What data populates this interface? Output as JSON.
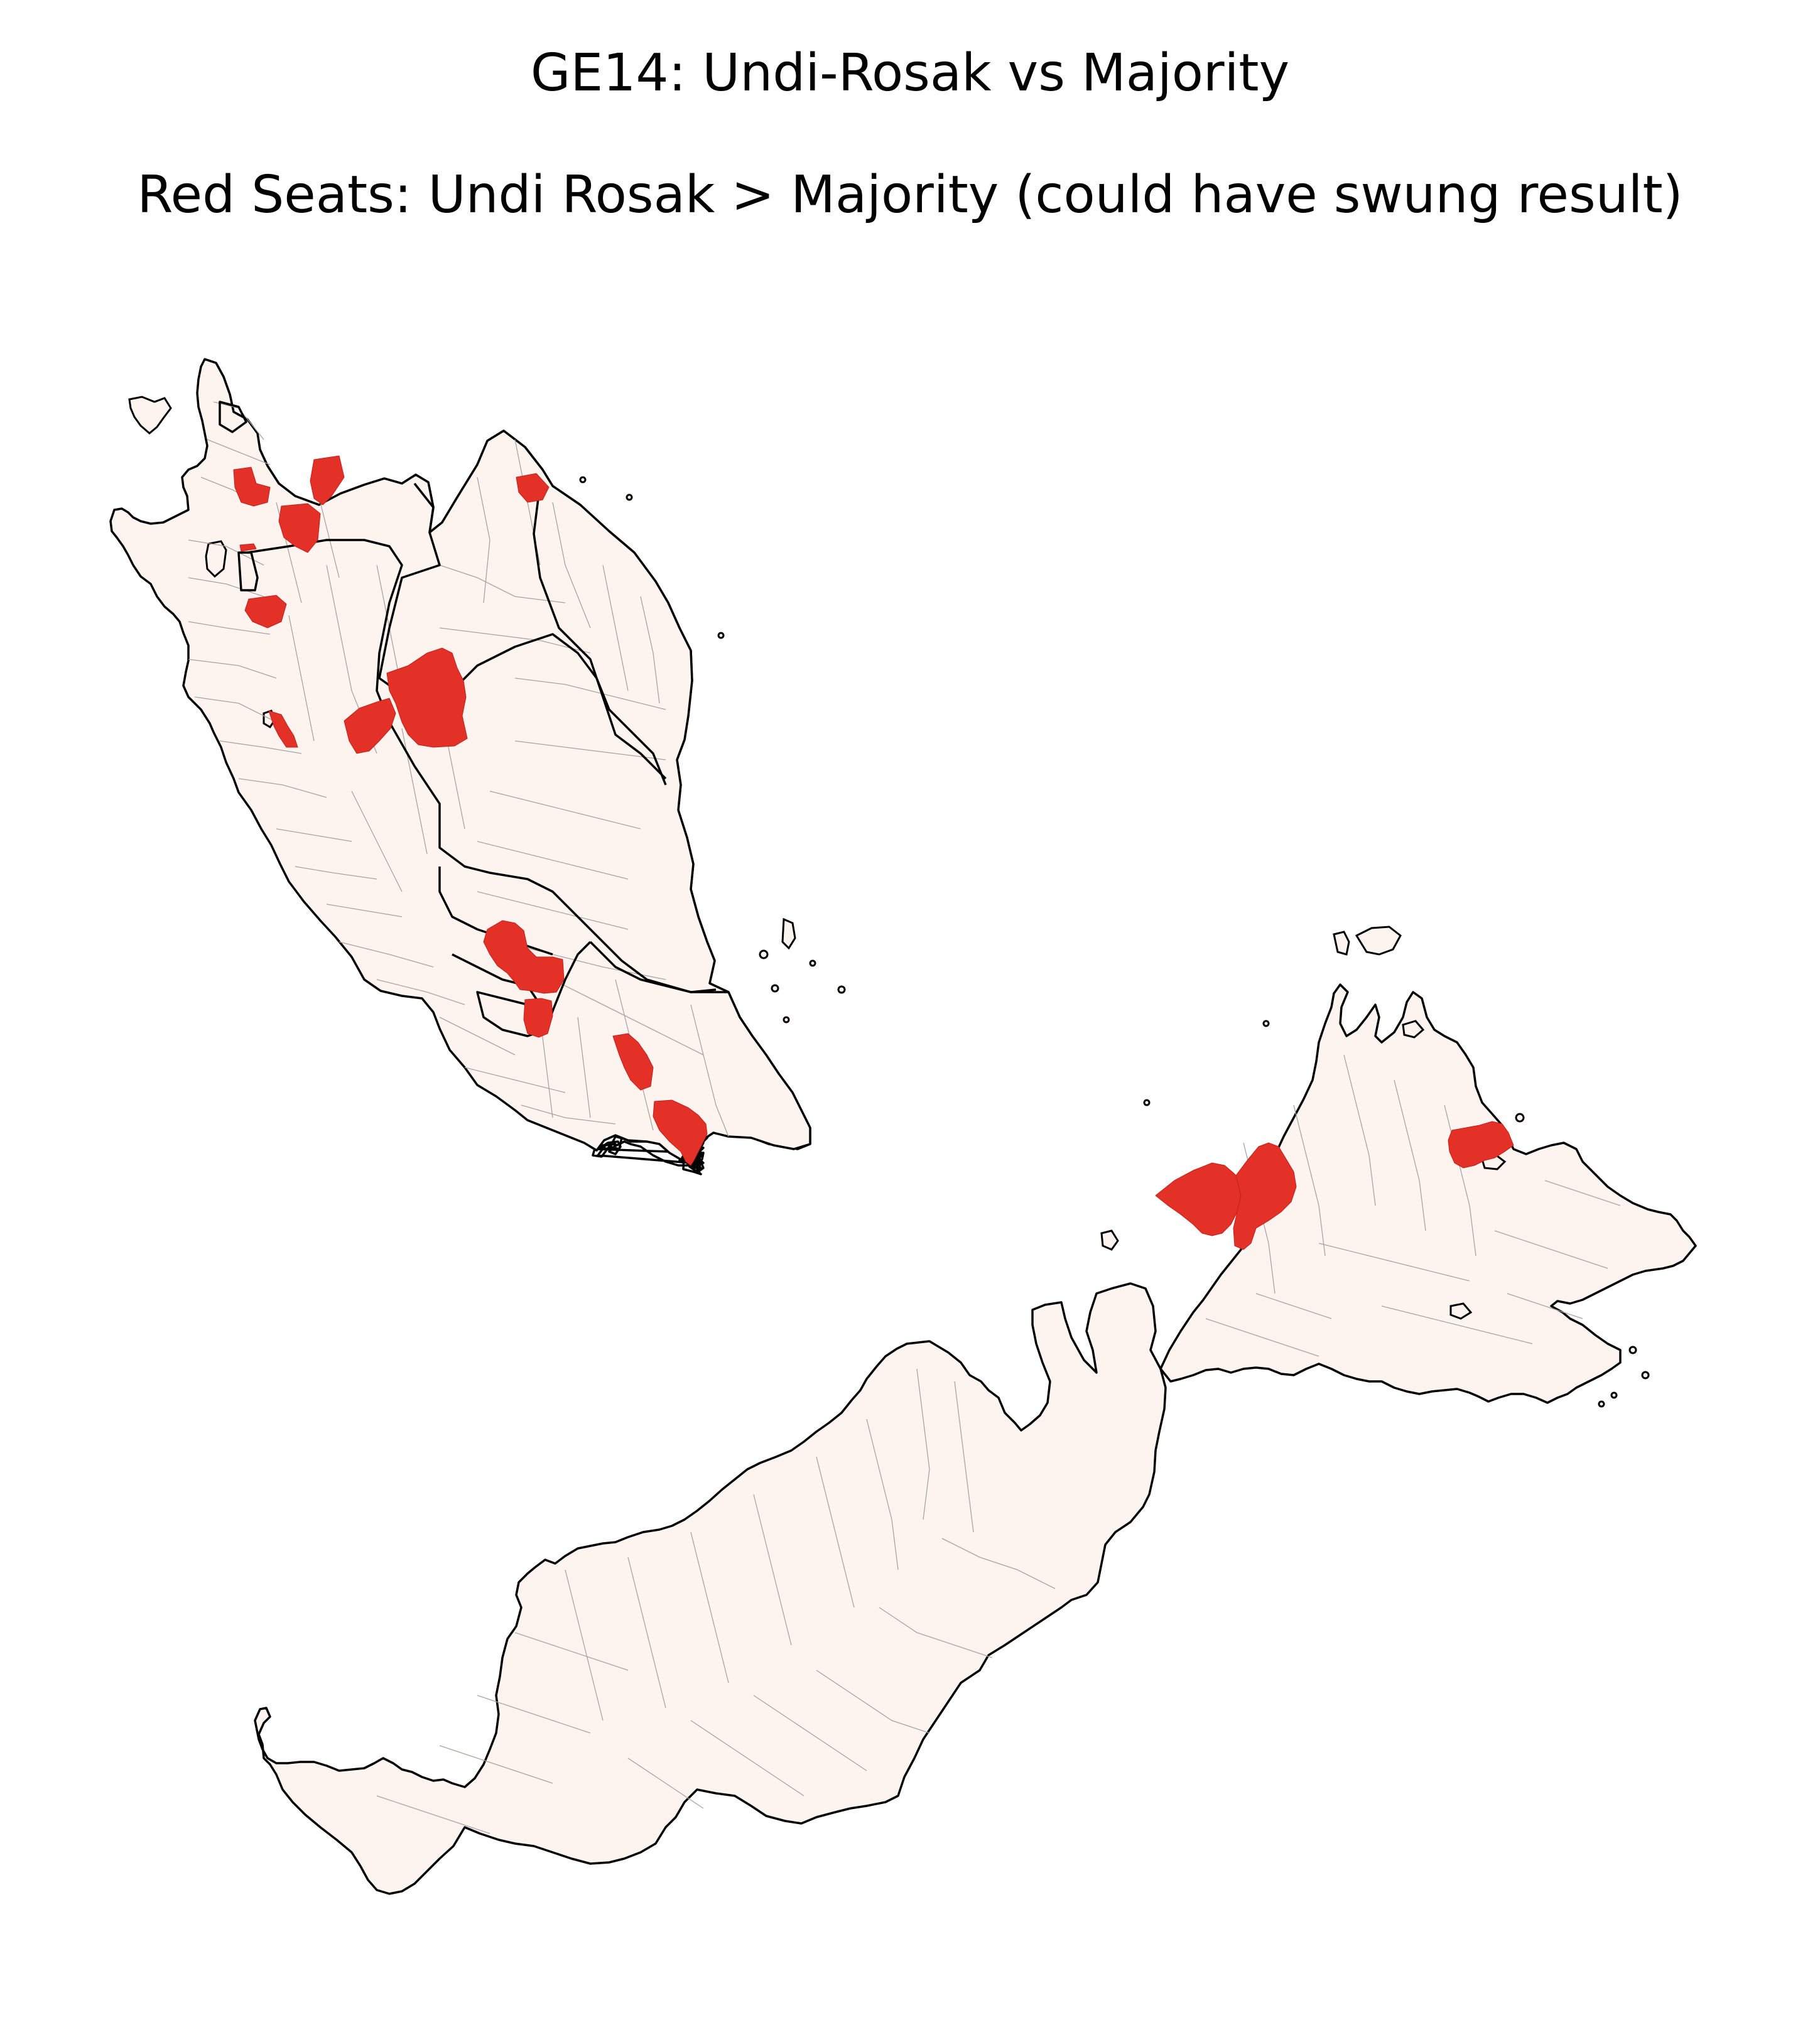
{
  "title": {
    "line1": "GE14: Undi-Rosak vs Majority",
    "line2": "Red Seats: Undi Rosak > Majority (could have swung result)"
  },
  "map": {
    "regions": [
      "Peninsular Malaysia",
      "Sabah",
      "Sarawak"
    ],
    "highlighted_seats": {
      "peninsular": 12,
      "sabah": 3
    },
    "colors": {
      "base": "#fdf4f0",
      "highlight": "#e33128",
      "border": "#000000",
      "seat_border": "#a9a29f"
    }
  }
}
